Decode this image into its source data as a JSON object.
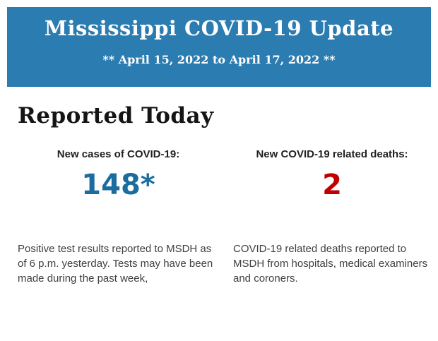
{
  "header": {
    "title": "Mississippi COVID-19 Update",
    "subtitle": "** April 15, 2022 to April 17, 2022 **",
    "background_color": "#2b7cb0",
    "text_color": "#ffffff"
  },
  "section": {
    "title": "Reported Today"
  },
  "stats": [
    {
      "label": "New cases of COVID-19:",
      "value": "148*",
      "value_color": "#1a6d9e",
      "description": "Positive test results reported to MSDH as of 6 p.m. yesterday. Tests may have been made during the past week,"
    },
    {
      "label": "New COVID-19 related deaths:",
      "value": "2",
      "value_color": "#c00000",
      "description": "COVID-19 related deaths reported to MSDH from hospitals, medical examiners and coroners."
    }
  ]
}
